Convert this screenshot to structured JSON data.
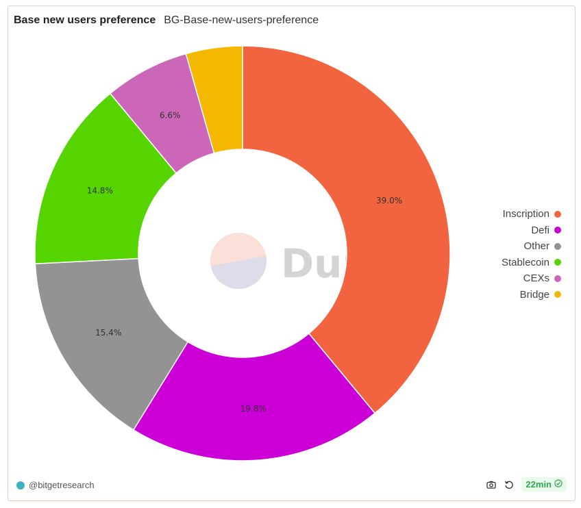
{
  "header": {
    "title": "Base new users preference",
    "subtitle": "BG-Base-new-users-preference"
  },
  "chart_data": {
    "type": "pie",
    "donut": true,
    "slices": [
      {
        "name": "Inscription",
        "value": 39.0,
        "label": "39.0%",
        "color": "#f26440"
      },
      {
        "name": "Defi",
        "value": 19.8,
        "label": "19.8%",
        "color": "#cc00d6"
      },
      {
        "name": "Other",
        "value": 15.4,
        "label": "15.4%",
        "color": "#939393"
      },
      {
        "name": "Stablecoin",
        "value": 14.8,
        "label": "14.8%",
        "color": "#55d400"
      },
      {
        "name": "CEXs",
        "value": 6.6,
        "label": "6.6%",
        "color": "#cc66b8"
      },
      {
        "name": "Bridge",
        "value": 4.4,
        "label": "",
        "color": "#f5b800"
      }
    ],
    "legend_position": "right"
  },
  "watermark": {
    "text": "Dune"
  },
  "footer": {
    "author": "@bitgetresearch",
    "camera_icon": "camera-icon",
    "refresh_icon": "refresh-icon",
    "time_badge": "22min"
  },
  "colors": {
    "accent_border": "#f0c8bd",
    "badge_green": "#2fa84f"
  }
}
